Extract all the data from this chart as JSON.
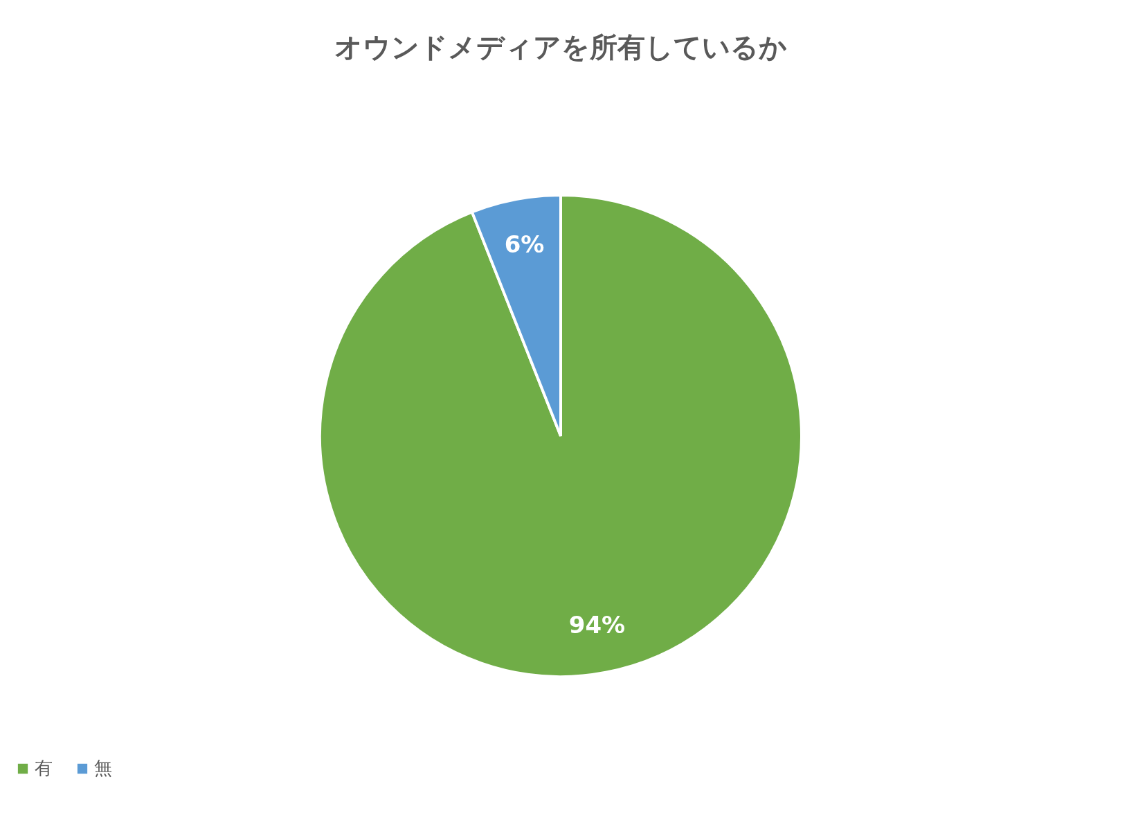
{
  "chart_data": {
    "type": "pie",
    "title": "オウンドメディアを所有しているか",
    "categories": [
      "有",
      "無"
    ],
    "values": [
      94,
      6
    ],
    "colors": [
      "#70ad47",
      "#5b9bd5"
    ],
    "value_labels": [
      "94%",
      "6%"
    ],
    "legend": "bottom"
  }
}
